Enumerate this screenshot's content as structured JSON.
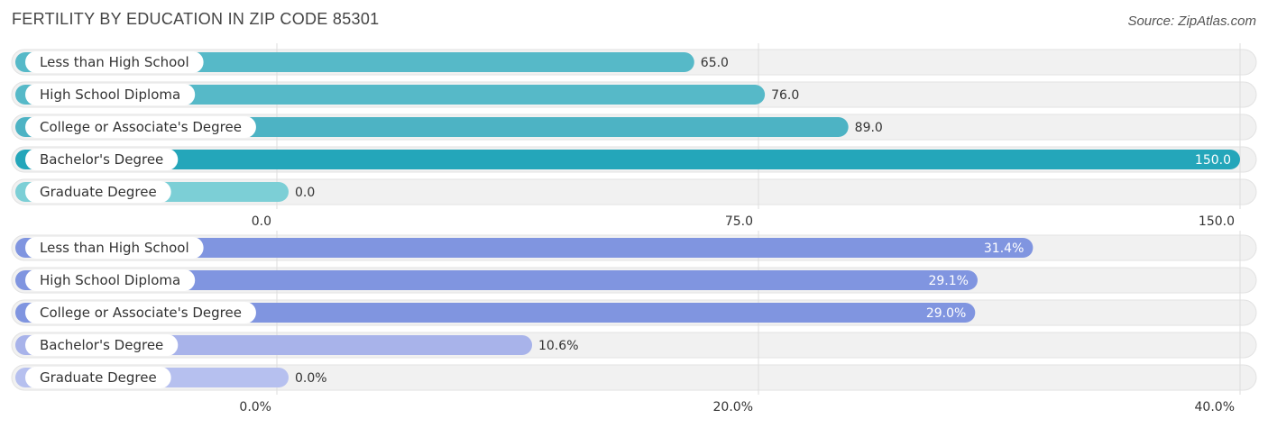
{
  "title": "FERTILITY BY EDUCATION IN ZIP CODE 85301",
  "source": "Source: ZipAtlas.com",
  "chart_data": [
    {
      "type": "bar",
      "orientation": "horizontal",
      "categories": [
        "Less than High School",
        "High School Diploma",
        "College or Associate's Degree",
        "Bachelor's Degree",
        "Graduate Degree"
      ],
      "values": [
        65.0,
        76.0,
        89.0,
        150.0,
        0.0
      ],
      "value_labels": [
        "65.0",
        "76.0",
        "89.0",
        "150.0",
        "0.0"
      ],
      "xlim": [
        0,
        150
      ],
      "ticks": [
        0,
        75,
        150
      ],
      "tick_labels": [
        "0.0",
        "75.0",
        "150.0"
      ],
      "colors": [
        "#56b9c8",
        "#56b9c8",
        "#4db3c4",
        "#24a6ba",
        "#7ccfd6"
      ],
      "grid": true
    },
    {
      "type": "bar",
      "orientation": "horizontal",
      "categories": [
        "Less than High School",
        "High School Diploma",
        "College or Associate's Degree",
        "Bachelor's Degree",
        "Graduate Degree"
      ],
      "values": [
        31.4,
        29.1,
        29.0,
        10.6,
        0.0
      ],
      "value_labels": [
        "31.4%",
        "29.1%",
        "29.0%",
        "10.6%",
        "0.0%"
      ],
      "xlim": [
        0,
        40
      ],
      "ticks": [
        0,
        20,
        40
      ],
      "tick_labels": [
        "0.0%",
        "20.0%",
        "40.0%"
      ],
      "colors": [
        "#8095e0",
        "#8095e0",
        "#8095e0",
        "#a8b3ea",
        "#b6c0ef"
      ],
      "grid": true
    }
  ]
}
